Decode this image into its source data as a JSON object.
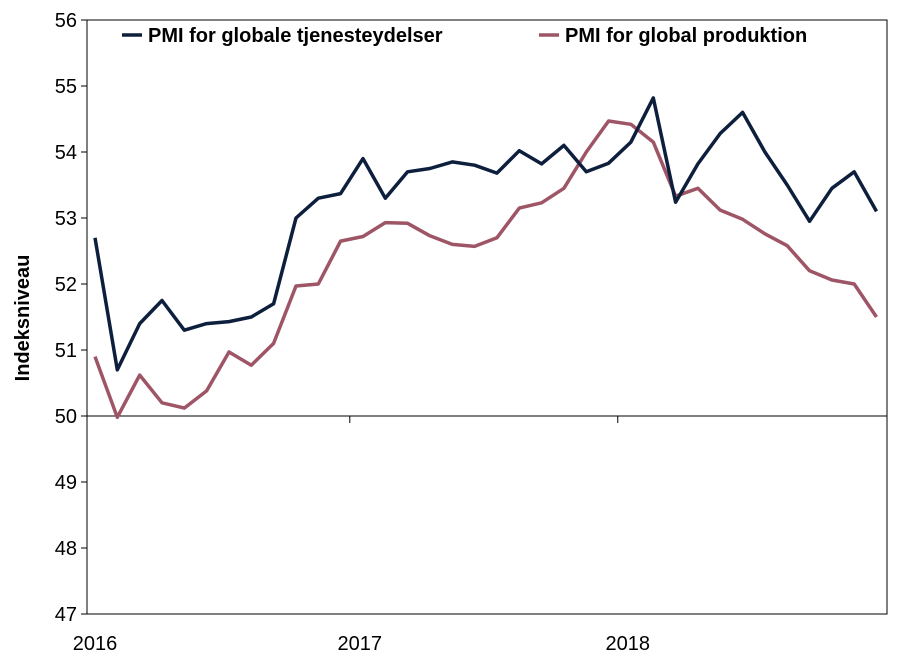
{
  "chart_data": {
    "type": "line",
    "title": "",
    "xlabel": "",
    "ylabel": "Indeksniveau",
    "ylim": [
      47,
      56
    ],
    "yticks": [
      "47",
      "48",
      "49",
      "50",
      "51",
      "52",
      "53",
      "54",
      "55",
      "56"
    ],
    "xticks": [
      "2016",
      "2017",
      "2018"
    ],
    "x": [
      "2016-01",
      "2016-02",
      "2016-03",
      "2016-04",
      "2016-05",
      "2016-06",
      "2016-07",
      "2016-08",
      "2016-09",
      "2016-10",
      "2016-11",
      "2016-12",
      "2017-01",
      "2017-02",
      "2017-03",
      "2017-04",
      "2017-05",
      "2017-06",
      "2017-07",
      "2017-08",
      "2017-09",
      "2017-10",
      "2017-11",
      "2017-12",
      "2018-01",
      "2018-02",
      "2018-03",
      "2018-04",
      "2018-05",
      "2018-06",
      "2018-07",
      "2018-08",
      "2018-09",
      "2018-10",
      "2018-11",
      "2018-12"
    ],
    "baseline": 50,
    "grid": false,
    "legend_position": "top",
    "series": [
      {
        "name": "PMI for globale tjenesteydelser",
        "color": "#0d1f3c",
        "values": [
          52.7,
          50.7,
          51.4,
          51.75,
          51.3,
          51.4,
          51.43,
          51.5,
          51.7,
          53.0,
          53.3,
          53.37,
          53.9,
          53.3,
          53.7,
          53.75,
          53.85,
          53.8,
          53.68,
          54.02,
          53.82,
          54.1,
          53.7,
          53.83,
          54.15,
          54.82,
          53.24,
          53.82,
          54.28,
          54.6,
          54.0,
          53.5,
          52.95,
          53.45,
          53.7,
          53.1
        ]
      },
      {
        "name": "PMI for global produktion",
        "color": "#9e5566",
        "values": [
          50.9,
          49.98,
          50.62,
          50.2,
          50.12,
          50.38,
          50.97,
          50.77,
          51.1,
          51.97,
          52.0,
          52.65,
          52.72,
          52.93,
          52.92,
          52.73,
          52.6,
          52.57,
          52.7,
          53.15,
          53.23,
          53.45,
          54.0,
          54.47,
          54.42,
          54.15,
          53.33,
          53.45,
          53.12,
          52.98,
          52.76,
          52.58,
          52.2,
          52.06,
          52.0,
          51.5
        ]
      }
    ]
  }
}
